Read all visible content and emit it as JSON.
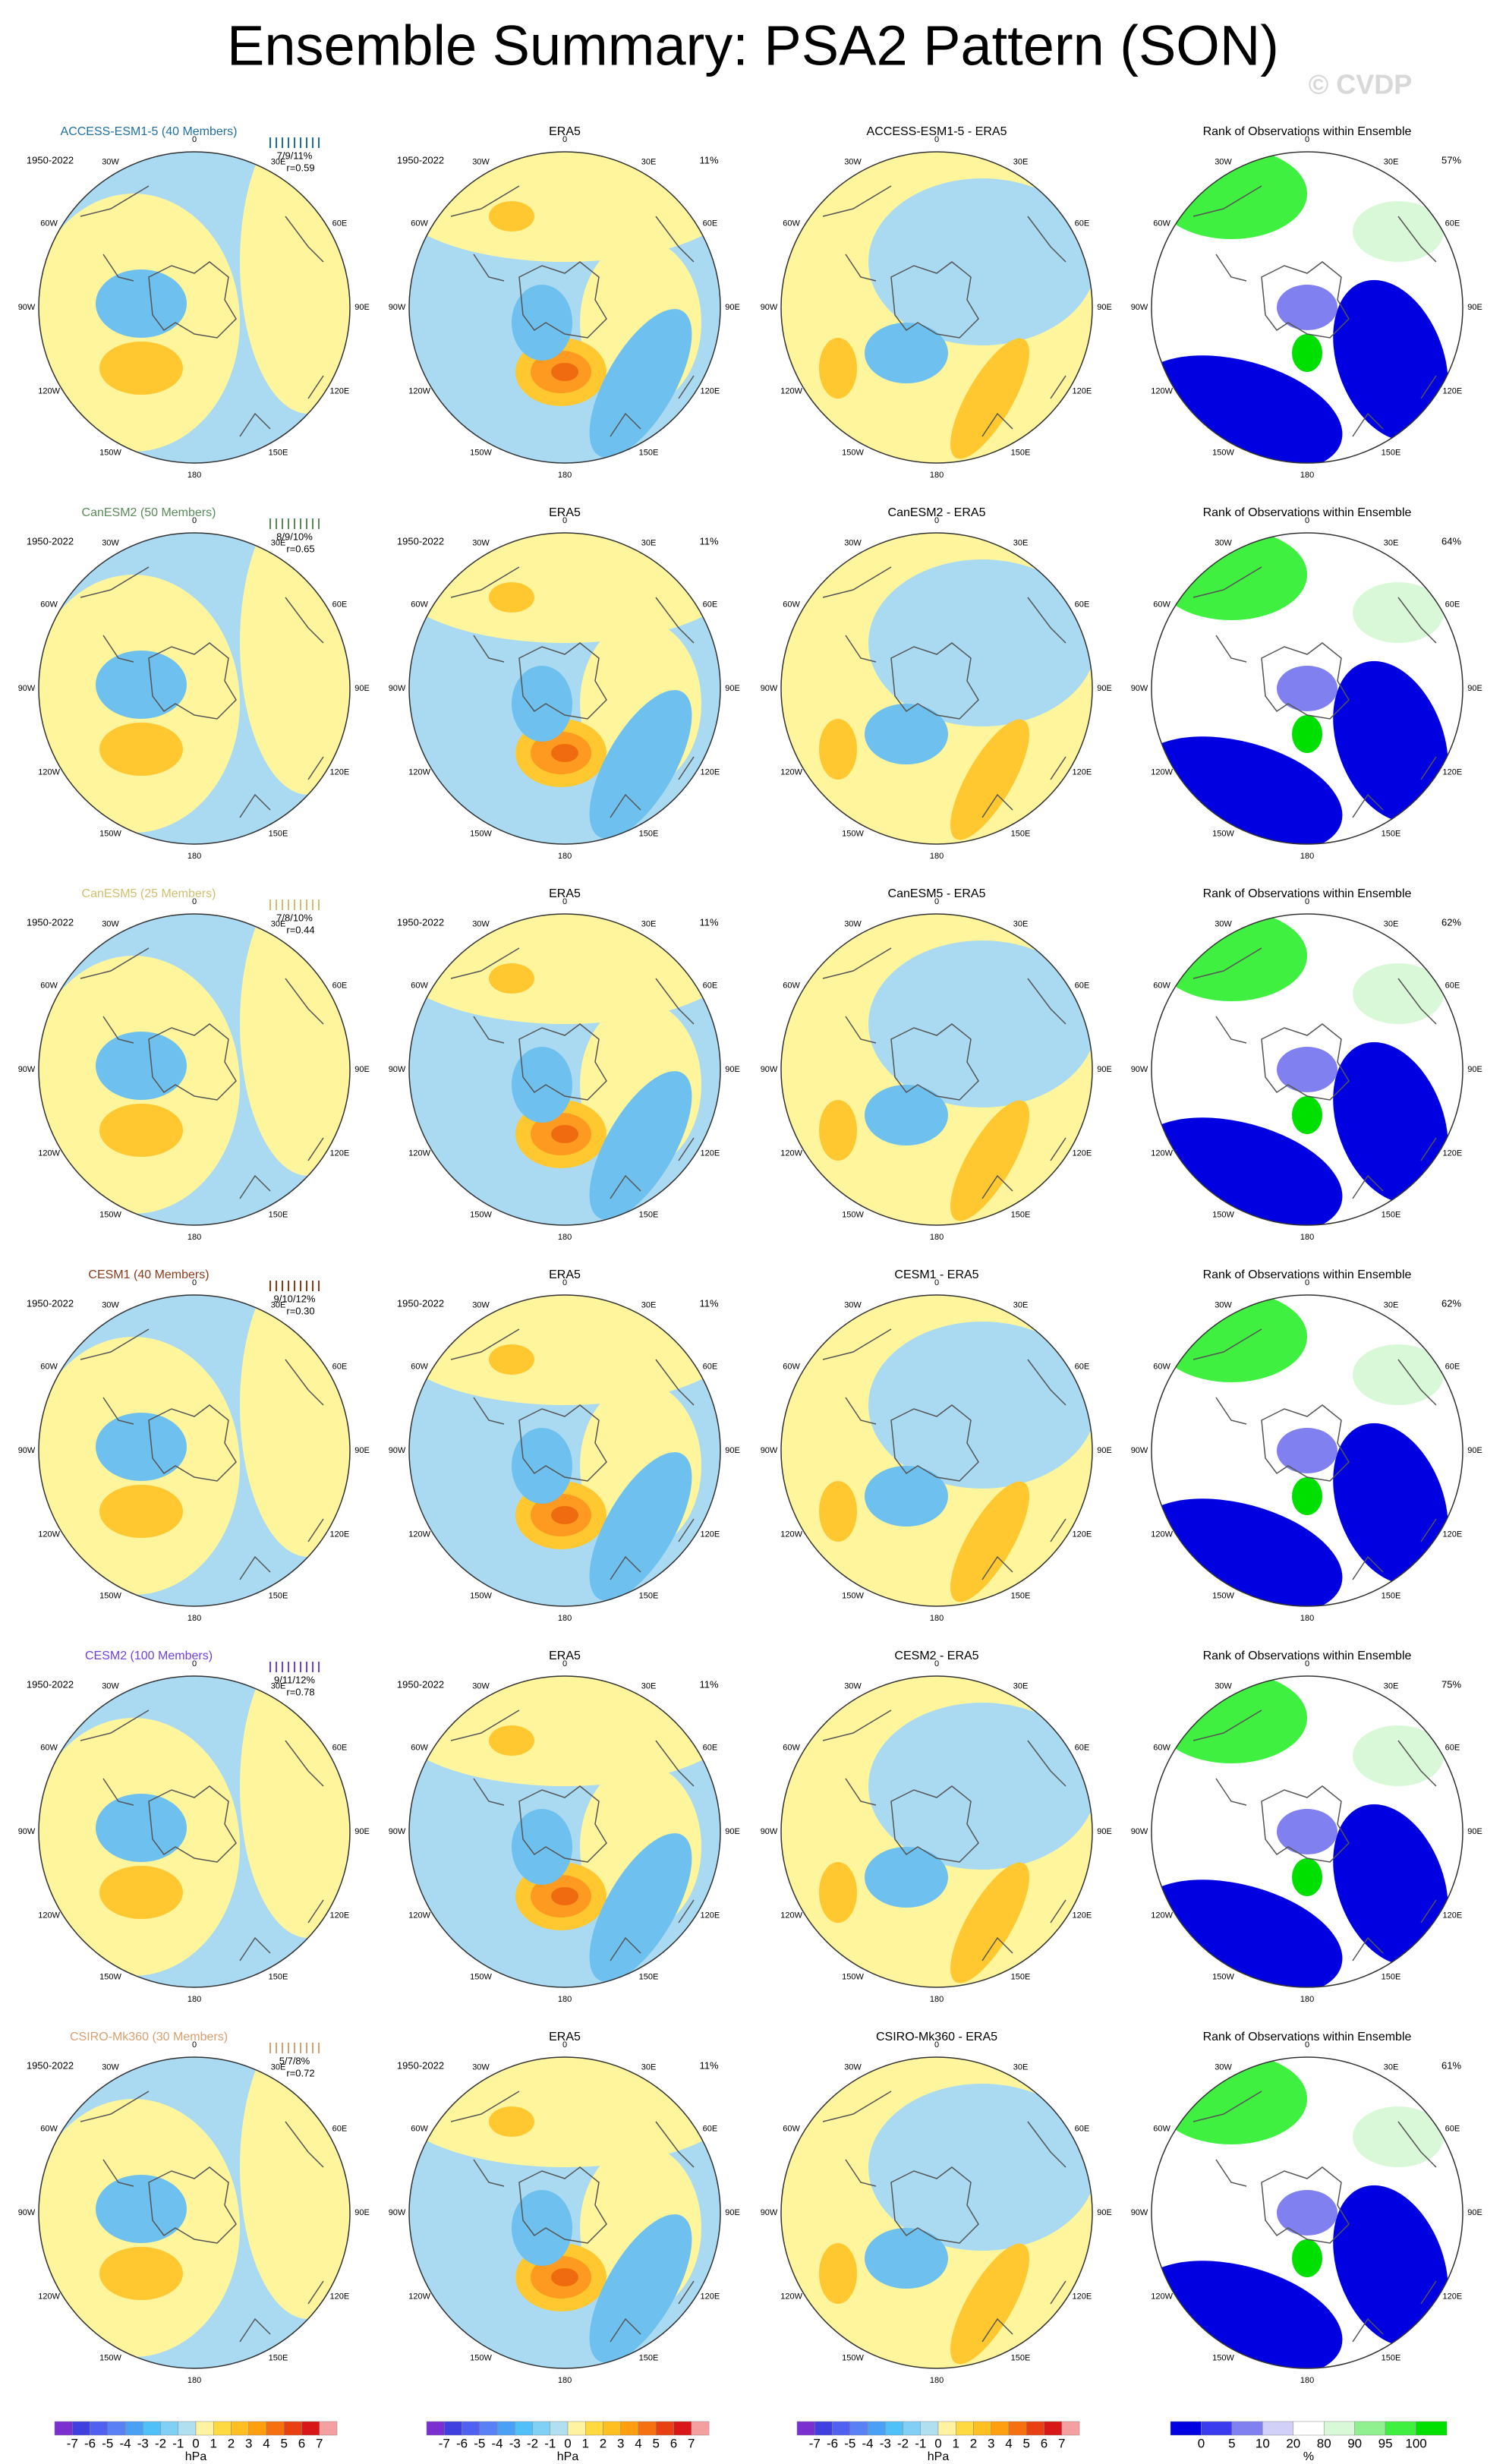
{
  "header": {
    "title": "Ensemble Summary: PSA2 Pattern (SON)",
    "watermark": "© CVDP"
  },
  "longitude_labels": [
    "0",
    "30E",
    "60E",
    "90E",
    "120E",
    "150E",
    "180",
    "150W",
    "120W",
    "90W",
    "60W",
    "30W"
  ],
  "rows": [
    {
      "model": {
        "title": "ACCESS-ESM1-5 (40 Members)",
        "color": "#1f6f9f",
        "period": "1950-2022",
        "stats": "7/9/11%",
        "r": "r=0.59"
      },
      "era5": {
        "title": "ERA5",
        "period": "1950-2022",
        "pct": "11%"
      },
      "diff": {
        "title": "ACCESS-ESM1-5 - ERA5"
      },
      "rank": {
        "title": "Rank of Observations within Ensemble",
        "pct": "57%"
      }
    },
    {
      "model": {
        "title": "CanESM2 (50 Members)",
        "color": "#5a8a5a",
        "period": "1950-2022",
        "stats": "8/9/10%",
        "r": "r=0.65"
      },
      "era5": {
        "title": "ERA5",
        "period": "1950-2022",
        "pct": "11%"
      },
      "diff": {
        "title": "CanESM2 - ERA5"
      },
      "rank": {
        "title": "Rank of Observations within Ensemble",
        "pct": "64%"
      }
    },
    {
      "model": {
        "title": "CanESM5 (25 Members)",
        "color": "#cfc070",
        "period": "1950-2022",
        "stats": "7/8/10%",
        "r": "r=0.44"
      },
      "era5": {
        "title": "ERA5",
        "period": "1950-2022",
        "pct": "11%"
      },
      "diff": {
        "title": "CanESM5 - ERA5"
      },
      "rank": {
        "title": "Rank of Observations within Ensemble",
        "pct": "62%"
      }
    },
    {
      "model": {
        "title": "CESM1 (40 Members)",
        "color": "#8b3a1a",
        "period": "1950-2022",
        "stats": "9/10/12%",
        "r": "r=0.30"
      },
      "era5": {
        "title": "ERA5",
        "period": "1950-2022",
        "pct": "11%"
      },
      "diff": {
        "title": "CESM1 - ERA5"
      },
      "rank": {
        "title": "Rank of Observations within Ensemble",
        "pct": "62%"
      }
    },
    {
      "model": {
        "title": "CESM2 (100 Members)",
        "color": "#7040e0",
        "period": "1950-2022",
        "stats": "9/11/12%",
        "r": "r=0.78"
      },
      "era5": {
        "title": "ERA5",
        "period": "1950-2022",
        "pct": "11%"
      },
      "diff": {
        "title": "CESM2 - ERA5"
      },
      "rank": {
        "title": "Rank of Observations within Ensemble",
        "pct": "75%"
      }
    },
    {
      "model": {
        "title": "CSIRO-Mk360 (30 Members)",
        "color": "#d8a070",
        "period": "1950-2022",
        "stats": "5/7/8%",
        "r": "r=0.72"
      },
      "era5": {
        "title": "ERA5",
        "period": "1950-2022",
        "pct": "11%"
      },
      "diff": {
        "title": "CSIRO-Mk360 - ERA5"
      },
      "rank": {
        "title": "Rank of Observations within Ensemble",
        "pct": "61%"
      }
    }
  ],
  "colorbars": {
    "pattern": {
      "ticks": [
        -7,
        -6,
        -5,
        -4,
        -3,
        -2,
        -1,
        0,
        1,
        2,
        3,
        4,
        5,
        6,
        7
      ],
      "unit": "hPa",
      "colors": [
        "#7b2fd0",
        "#4040e0",
        "#5060f0",
        "#5a80f5",
        "#4aa0f5",
        "#50c0f8",
        "#80d0f5",
        "#b0dff0",
        "#fff2a0",
        "#ffd940",
        "#ffbf20",
        "#ff9f10",
        "#f77010",
        "#e84010",
        "#d81818",
        "#f5a0a0"
      ]
    },
    "rank": {
      "ticks": [
        0,
        5,
        10,
        20,
        80,
        90,
        95,
        100
      ],
      "unit": "%",
      "colors": [
        "#0000e0",
        "#3a3aee",
        "#8080f0",
        "#d0d0f8",
        "#ffffff",
        "#d8f8d8",
        "#90f090",
        "#40f040",
        "#00e000"
      ]
    }
  }
}
